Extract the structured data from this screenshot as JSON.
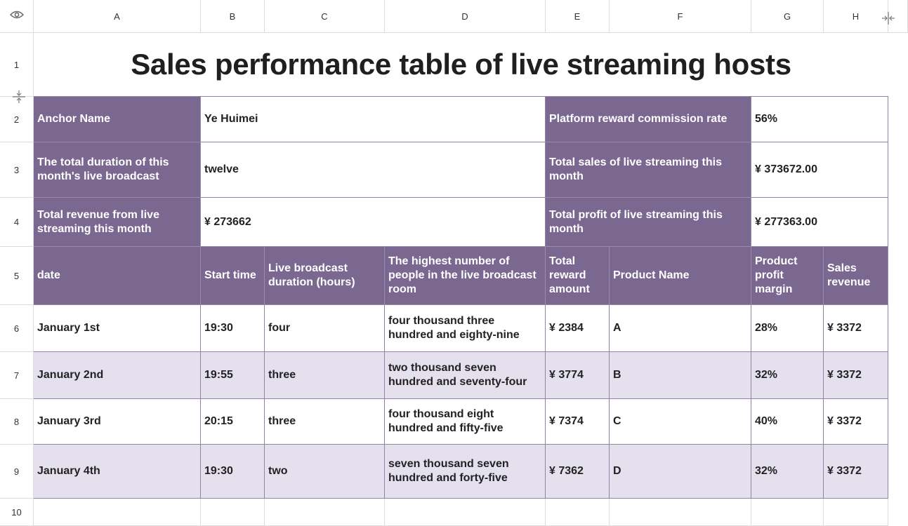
{
  "columns": [
    "A",
    "B",
    "C",
    "D",
    "E",
    "F",
    "G",
    "H"
  ],
  "rows": [
    "1",
    "2",
    "3",
    "4",
    "5",
    "6",
    "7",
    "8",
    "9",
    "10"
  ],
  "title": "Sales performance table of live streaming hosts",
  "summary": {
    "anchor_name_label": "Anchor Name",
    "anchor_name_value": "Ye Huimei",
    "commission_label": "Platform reward commission rate",
    "commission_value": "56%",
    "duration_label": "The total duration of this month's live broadcast",
    "duration_value": "twelve",
    "total_sales_label": "Total sales of live streaming this month",
    "total_sales_value": "¥ 373672.00",
    "total_revenue_label": "Total revenue from live streaming this month",
    "total_revenue_value": "¥ 273662",
    "total_profit_label": "Total profit of live streaming this month",
    "total_profit_value": "¥ 277363.00"
  },
  "table": {
    "headers": [
      "date",
      "Start time",
      "Live broadcast duration (hours)",
      "The highest number of people in the live broadcast room",
      "Total reward amount",
      "Product Name",
      "Product profit margin",
      "Sales revenue"
    ],
    "rows": [
      [
        "January 1st",
        "19:30",
        "four",
        "four thousand three hundred and eighty-nine",
        "¥ 2384",
        "A",
        "28%",
        "¥ 3372"
      ],
      [
        "January 2nd",
        "19:55",
        "three",
        "two thousand seven hundred and seventy-four",
        "¥ 3774",
        "B",
        "32%",
        "¥ 3372"
      ],
      [
        "January 3rd",
        "20:15",
        "three",
        "four thousand eight hundred and fifty-five",
        "¥ 7374",
        "C",
        "40%",
        "¥ 3372"
      ],
      [
        "January 4th",
        "19:30",
        "two",
        "seven thousand seven hundred and forty-five",
        "¥ 7362",
        "D",
        "32%",
        "¥ 3372"
      ]
    ]
  },
  "icons": {
    "corner": "eye-icon",
    "freeze_column": "freeze-column-icon",
    "freeze_row": "freeze-row-icon"
  },
  "colors": {
    "header_fill": "#7a6891",
    "stripe_fill": "#e4e0ee"
  }
}
